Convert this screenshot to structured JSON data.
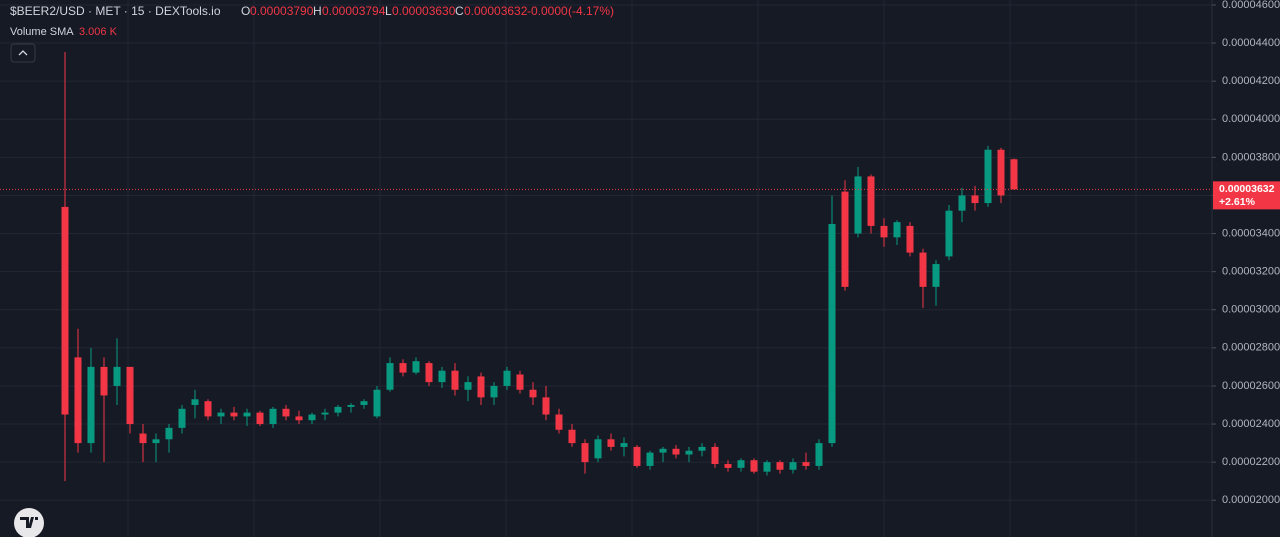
{
  "chart_data": {
    "type": "candlestick",
    "legend": {
      "symbol": "$BEER2/USD · MET · 15 · DEXTools.io",
      "open_label": "O",
      "open": "0.00003790",
      "high_label": "H",
      "high": "0.00003794",
      "low_label": "L",
      "low": "0.00003630",
      "close_label": "C",
      "close": "0.00003632",
      "change": "-0.0000",
      "change_pct": "(-4.17%)"
    },
    "volume_label": "Volume SMA",
    "volume_value": "3.006 K",
    "last_price": {
      "value": 3.632e-05,
      "label": "0.00003632"
    },
    "last_change": "+2.61%",
    "up_color": "#089981",
    "down_color": "#f23645",
    "grid": true,
    "ylim": [
      1.807e-05,
      4.626e-05
    ],
    "yticks": [
      {
        "value": 2e-05,
        "label": "0.00002000"
      },
      {
        "value": 2.2e-05,
        "label": "0.00002200"
      },
      {
        "value": 2.4e-05,
        "label": "0.00002400"
      },
      {
        "value": 2.6e-05,
        "label": "0.00002600"
      },
      {
        "value": 2.8e-05,
        "label": "0.00002800"
      },
      {
        "value": 3e-05,
        "label": "0.00003000"
      },
      {
        "value": 3.2e-05,
        "label": "0.00003200"
      },
      {
        "value": 3.4e-05,
        "label": "0.00003400"
      },
      {
        "value": 3.6e-05,
        "label": "0.00003600"
      },
      {
        "value": 3.8e-05,
        "label": "0.00003800"
      },
      {
        "value": 4e-05,
        "label": "0.00004000"
      },
      {
        "value": 4.2e-05,
        "label": "0.00004200"
      },
      {
        "value": 4.4e-05,
        "label": "0.00004400"
      },
      {
        "value": 4.6e-05,
        "label": "0.00004600"
      }
    ],
    "open": [
      3.54e-05,
      2.75e-05,
      2.3e-05,
      2.7e-05,
      2.6e-05,
      2.7e-05,
      2.35e-05,
      2.3e-05,
      2.32e-05,
      2.38e-05,
      2.5e-05,
      2.52e-05,
      2.44e-05,
      2.46e-05,
      2.44e-05,
      2.46e-05,
      2.4e-05,
      2.48e-05,
      2.44e-05,
      2.42e-05,
      2.45e-05,
      2.46e-05,
      2.49e-05,
      2.5e-05,
      2.44e-05,
      2.58e-05,
      2.72e-05,
      2.67e-05,
      2.72e-05,
      2.62e-05,
      2.68e-05,
      2.58e-05,
      2.65e-05,
      2.54e-05,
      2.6e-05,
      2.66e-05,
      2.58e-05,
      2.54e-05,
      2.45e-05,
      2.37e-05,
      2.3e-05,
      2.22e-05,
      2.32e-05,
      2.28e-05,
      2.28e-05,
      2.18e-05,
      2.25e-05,
      2.27e-05,
      2.24e-05,
      2.26e-05,
      2.28e-05,
      2.19e-05,
      2.17e-05,
      2.21e-05,
      2.15e-05,
      2.2e-05,
      2.16e-05,
      2.2e-05,
      2.18e-05,
      2.3e-05,
      3.62e-05,
      3.4e-05,
      3.7e-05,
      3.44e-05,
      3.38e-05,
      3.44e-05,
      3.3e-05,
      3.12e-05,
      3.28e-05,
      3.52e-05,
      3.6e-05,
      3.56e-05,
      3.84e-05,
      3.79e-05
    ],
    "high": [
      4.353e-05,
      2.9e-05,
      2.8e-05,
      2.75e-05,
      2.85e-05,
      2.7e-05,
      2.4e-05,
      2.35e-05,
      2.4e-05,
      2.5e-05,
      2.58e-05,
      2.53e-05,
      2.48e-05,
      2.49e-05,
      2.48e-05,
      2.47e-05,
      2.49e-05,
      2.5e-05,
      2.47e-05,
      2.46e-05,
      2.48e-05,
      2.5e-05,
      2.51e-05,
      2.53e-05,
      2.6e-05,
      2.75e-05,
      2.74e-05,
      2.75e-05,
      2.73e-05,
      2.7e-05,
      2.72e-05,
      2.65e-05,
      2.67e-05,
      2.62e-05,
      2.7e-05,
      2.68e-05,
      2.62e-05,
      2.6e-05,
      2.48e-05,
      2.4e-05,
      2.32e-05,
      2.34e-05,
      2.35e-05,
      2.33e-05,
      2.29e-05,
      2.26e-05,
      2.28e-05,
      2.29e-05,
      2.28e-05,
      2.3e-05,
      2.3e-05,
      2.21e-05,
      2.22e-05,
      2.22e-05,
      2.21e-05,
      2.21e-05,
      2.22e-05,
      2.25e-05,
      2.32e-05,
      3.6e-05,
      3.68e-05,
      3.75e-05,
      3.71e-05,
      3.48e-05,
      3.47e-05,
      3.46e-05,
      3.32e-05,
      3.26e-05,
      3.55e-05,
      3.64e-05,
      3.65e-05,
      3.86e-05,
      3.85e-05,
      3.794e-05
    ],
    "low": [
      2.1e-05,
      2.25e-05,
      2.25e-05,
      2.2e-05,
      2.5e-05,
      2.35e-05,
      2.2e-05,
      2.2e-05,
      2.25e-05,
      2.35e-05,
      2.43e-05,
      2.42e-05,
      2.4e-05,
      2.42e-05,
      2.39e-05,
      2.39e-05,
      2.38e-05,
      2.42e-05,
      2.4e-05,
      2.4e-05,
      2.42e-05,
      2.44e-05,
      2.46e-05,
      2.48e-05,
      2.43e-05,
      2.57e-05,
      2.65e-05,
      2.66e-05,
      2.6e-05,
      2.59e-05,
      2.55e-05,
      2.52e-05,
      2.5e-05,
      2.5e-05,
      2.58e-05,
      2.56e-05,
      2.5e-05,
      2.42e-05,
      2.35e-05,
      2.28e-05,
      2.14e-05,
      2.2e-05,
      2.26e-05,
      2.23e-05,
      2.17e-05,
      2.16e-05,
      2.2e-05,
      2.22e-05,
      2.2e-05,
      2.23e-05,
      2.17e-05,
      2.15e-05,
      2.15e-05,
      2.14e-05,
      2.13e-05,
      2.14e-05,
      2.14e-05,
      2.16e-05,
      2.16e-05,
      2.28e-05,
      3.1e-05,
      3.38e-05,
      3.4e-05,
      3.33e-05,
      3.34e-05,
      3.28e-05,
      3.01e-05,
      3.02e-05,
      3.26e-05,
      3.46e-05,
      3.52e-05,
      3.54e-05,
      3.56e-05,
      3.63e-05
    ],
    "close": [
      2.45e-05,
      2.3e-05,
      2.7e-05,
      2.55e-05,
      2.7e-05,
      2.4e-05,
      2.3e-05,
      2.32e-05,
      2.38e-05,
      2.48e-05,
      2.53e-05,
      2.44e-05,
      2.46e-05,
      2.44e-05,
      2.46e-05,
      2.4e-05,
      2.48e-05,
      2.44e-05,
      2.42e-05,
      2.45e-05,
      2.46e-05,
      2.49e-05,
      2.5e-05,
      2.52e-05,
      2.58e-05,
      2.72e-05,
      2.67e-05,
      2.73e-05,
      2.62e-05,
      2.68e-05,
      2.58e-05,
      2.62e-05,
      2.54e-05,
      2.6e-05,
      2.68e-05,
      2.58e-05,
      2.54e-05,
      2.45e-05,
      2.37e-05,
      2.3e-05,
      2.2e-05,
      2.32e-05,
      2.28e-05,
      2.3e-05,
      2.18e-05,
      2.25e-05,
      2.27e-05,
      2.24e-05,
      2.26e-05,
      2.28e-05,
      2.19e-05,
      2.17e-05,
      2.21e-05,
      2.15e-05,
      2.2e-05,
      2.16e-05,
      2.2e-05,
      2.18e-05,
      2.3e-05,
      3.45e-05,
      3.12e-05,
      3.7e-05,
      3.44e-05,
      3.38e-05,
      3.46e-05,
      3.3e-05,
      3.12e-05,
      3.24e-05,
      3.52e-05,
      3.6e-05,
      3.56e-05,
      3.84e-05,
      3.6e-05,
      3.632e-05
    ]
  }
}
